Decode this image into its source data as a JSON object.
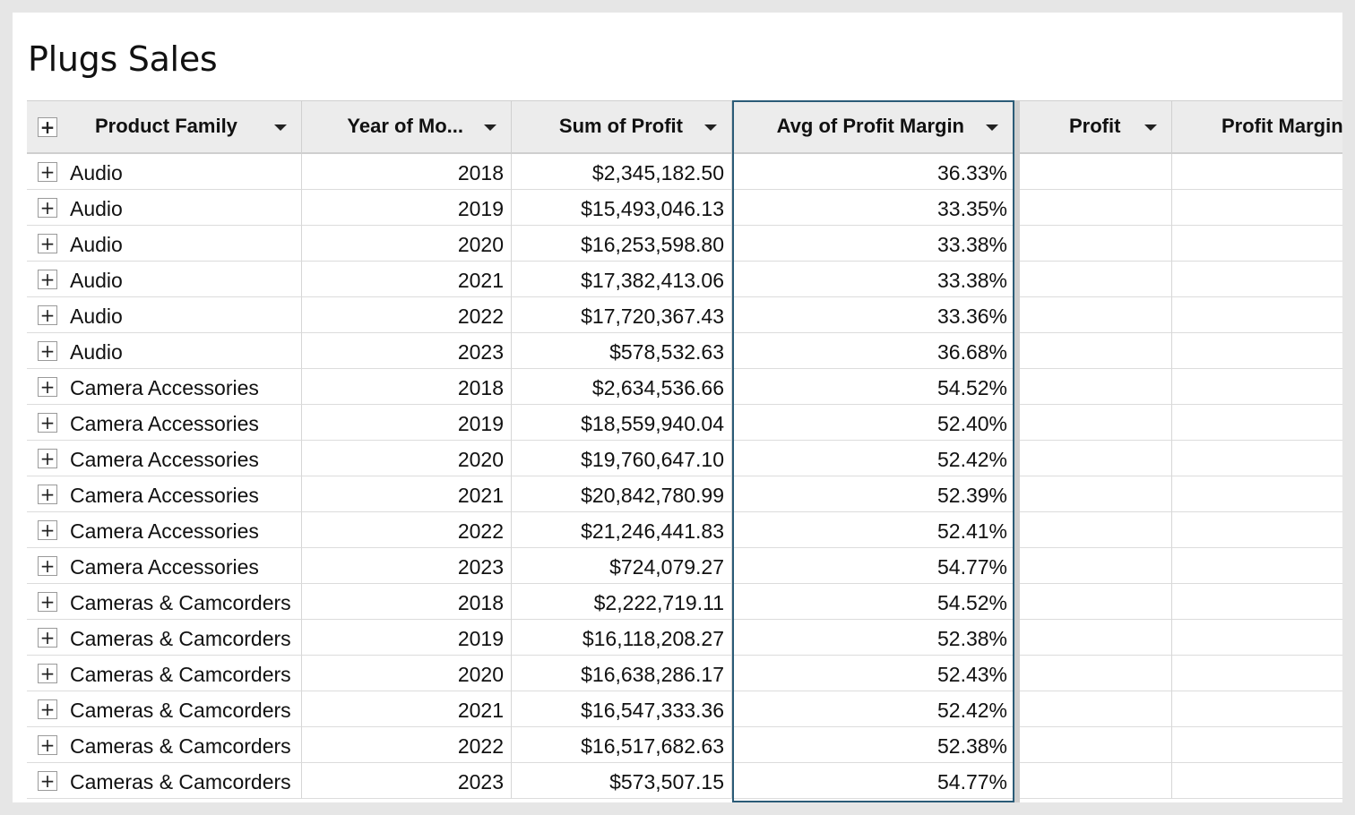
{
  "title": "Plugs Sales",
  "columns": [
    {
      "label": "Product Family"
    },
    {
      "label": "Year of Mo..."
    },
    {
      "label": "Sum of Profit"
    },
    {
      "label": "Avg of Profit Margin"
    },
    {
      "label": "Profit"
    },
    {
      "label": "Profit Margin"
    }
  ],
  "rows": [
    {
      "family": "Audio",
      "year": "2018",
      "profit": "$2,345,182.50",
      "margin": "36.33%"
    },
    {
      "family": "Audio",
      "year": "2019",
      "profit": "$15,493,046.13",
      "margin": "33.35%"
    },
    {
      "family": "Audio",
      "year": "2020",
      "profit": "$16,253,598.80",
      "margin": "33.38%"
    },
    {
      "family": "Audio",
      "year": "2021",
      "profit": "$17,382,413.06",
      "margin": "33.38%"
    },
    {
      "family": "Audio",
      "year": "2022",
      "profit": "$17,720,367.43",
      "margin": "33.36%"
    },
    {
      "family": "Audio",
      "year": "2023",
      "profit": "$578,532.63",
      "margin": "36.68%"
    },
    {
      "family": "Camera Accessories",
      "year": "2018",
      "profit": "$2,634,536.66",
      "margin": "54.52%"
    },
    {
      "family": "Camera Accessories",
      "year": "2019",
      "profit": "$18,559,940.04",
      "margin": "52.40%"
    },
    {
      "family": "Camera Accessories",
      "year": "2020",
      "profit": "$19,760,647.10",
      "margin": "52.42%"
    },
    {
      "family": "Camera Accessories",
      "year": "2021",
      "profit": "$20,842,780.99",
      "margin": "52.39%"
    },
    {
      "family": "Camera Accessories",
      "year": "2022",
      "profit": "$21,246,441.83",
      "margin": "52.41%"
    },
    {
      "family": "Camera Accessories",
      "year": "2023",
      "profit": "$724,079.27",
      "margin": "54.77%"
    },
    {
      "family": "Cameras & Camcorders",
      "year": "2018",
      "profit": "$2,222,719.11",
      "margin": "54.52%"
    },
    {
      "family": "Cameras & Camcorders",
      "year": "2019",
      "profit": "$16,118,208.27",
      "margin": "52.38%"
    },
    {
      "family": "Cameras & Camcorders",
      "year": "2020",
      "profit": "$16,638,286.17",
      "margin": "52.43%"
    },
    {
      "family": "Cameras & Camcorders",
      "year": "2021",
      "profit": "$16,547,333.36",
      "margin": "52.42%"
    },
    {
      "family": "Cameras & Camcorders",
      "year": "2022",
      "profit": "$16,517,682.63",
      "margin": "52.38%"
    },
    {
      "family": "Cameras & Camcorders",
      "year": "2023",
      "profit": "$573,507.15",
      "margin": "54.77%"
    }
  ],
  "icons": {
    "expand": "plus-icon",
    "menu": "caret-down-icon"
  },
  "colors": {
    "selected_column_border": "#2b5b77",
    "header_bg": "#ececec"
  }
}
